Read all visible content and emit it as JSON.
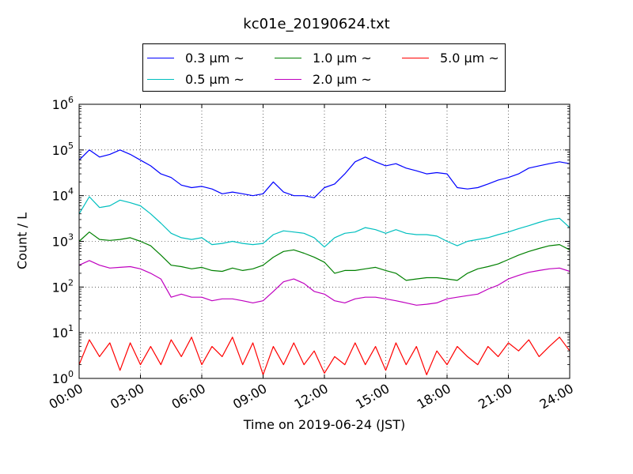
{
  "chart_data": {
    "type": "line",
    "title": "kc01e_20190624.txt",
    "xlabel": "Time on 2019-06-24 (JST)",
    "ylabel": "Count / L",
    "yscale": "log",
    "xlim": [
      "00:00",
      "24:00"
    ],
    "ylim": [
      1,
      1000000
    ],
    "grid": true,
    "legend_position": "top, above plot, 3 columns",
    "x_ticks": [
      "00:00",
      "03:00",
      "06:00",
      "09:00",
      "12:00",
      "15:00",
      "18:00",
      "21:00",
      "24:00"
    ],
    "y_ticks": [
      {
        "base": "10",
        "exp": "0",
        "value": 1
      },
      {
        "base": "10",
        "exp": "1",
        "value": 10
      },
      {
        "base": "10",
        "exp": "2",
        "value": 100
      },
      {
        "base": "10",
        "exp": "3",
        "value": 1000
      },
      {
        "base": "10",
        "exp": "4",
        "value": 10000
      },
      {
        "base": "10",
        "exp": "5",
        "value": 100000
      },
      {
        "base": "10",
        "exp": "6",
        "value": 1000000
      }
    ],
    "x": [
      "00:00",
      "00:30",
      "01:00",
      "01:30",
      "02:00",
      "02:30",
      "03:00",
      "03:30",
      "04:00",
      "04:30",
      "05:00",
      "05:30",
      "06:00",
      "06:30",
      "07:00",
      "07:30",
      "08:00",
      "08:30",
      "09:00",
      "09:30",
      "10:00",
      "10:30",
      "11:00",
      "11:30",
      "12:00",
      "12:30",
      "13:00",
      "13:30",
      "14:00",
      "14:30",
      "15:00",
      "15:30",
      "16:00",
      "16:30",
      "17:00",
      "17:30",
      "18:00",
      "18:30",
      "19:00",
      "19:30",
      "20:00",
      "20:30",
      "21:00",
      "21:30",
      "22:00",
      "22:30",
      "23:00",
      "23:30",
      "24:00"
    ],
    "series": [
      {
        "name": "0.3 μm ~",
        "color": "#0000ff",
        "values": [
          60000,
          100000,
          70000,
          80000,
          100000,
          80000,
          60000,
          45000,
          30000,
          25000,
          17000,
          15000,
          16000,
          14000,
          11000,
          12000,
          11000,
          10000,
          11000,
          20000,
          12000,
          10000,
          10000,
          9000,
          15000,
          18000,
          30000,
          55000,
          70000,
          55000,
          45000,
          50000,
          40000,
          35000,
          30000,
          32000,
          30000,
          15000,
          14000,
          15000,
          18000,
          22000,
          25000,
          30000,
          40000,
          45000,
          50000,
          55000,
          50000
        ]
      },
      {
        "name": "0.5 μm ~",
        "color": "#00bfbf",
        "values": [
          4000,
          9500,
          5500,
          6000,
          8000,
          7000,
          6000,
          4000,
          2500,
          1500,
          1200,
          1100,
          1200,
          850,
          900,
          1000,
          900,
          850,
          900,
          1400,
          1700,
          1600,
          1500,
          1200,
          750,
          1200,
          1500,
          1600,
          2000,
          1800,
          1500,
          1800,
          1500,
          1400,
          1400,
          1300,
          1000,
          800,
          1000,
          1100,
          1200,
          1400,
          1600,
          1900,
          2200,
          2600,
          3000,
          3200,
          2000
        ]
      },
      {
        "name": "1.0 μm ~",
        "color": "#008000",
        "values": [
          1000,
          1600,
          1100,
          1050,
          1100,
          1200,
          1000,
          800,
          500,
          300,
          280,
          250,
          270,
          230,
          220,
          260,
          230,
          250,
          300,
          450,
          600,
          650,
          550,
          450,
          350,
          200,
          230,
          230,
          250,
          270,
          230,
          200,
          140,
          150,
          160,
          160,
          150,
          140,
          200,
          250,
          280,
          320,
          400,
          500,
          600,
          700,
          800,
          850,
          650
        ]
      },
      {
        "name": "2.0 μm ~",
        "color": "#bf00bf",
        "values": [
          300,
          380,
          300,
          260,
          270,
          280,
          250,
          200,
          150,
          60,
          70,
          60,
          60,
          50,
          55,
          55,
          50,
          45,
          50,
          80,
          130,
          150,
          120,
          80,
          70,
          50,
          45,
          55,
          60,
          60,
          55,
          50,
          45,
          40,
          42,
          45,
          55,
          60,
          65,
          70,
          90,
          110,
          150,
          180,
          210,
          230,
          250,
          260,
          220
        ]
      },
      {
        "name": "5.0 μm ~",
        "color": "#ff0000",
        "values": [
          2,
          7,
          3,
          6,
          1.5,
          6,
          2,
          5,
          2,
          7,
          3,
          8,
          2,
          5,
          3,
          8,
          2,
          6,
          1.2,
          5,
          2,
          6,
          2,
          4,
          1.3,
          3,
          2,
          6,
          2,
          5,
          1.5,
          6,
          2,
          5,
          1.2,
          4,
          2,
          5,
          3,
          2,
          5,
          3,
          6,
          4,
          7,
          3,
          5,
          8,
          4
        ]
      }
    ]
  }
}
